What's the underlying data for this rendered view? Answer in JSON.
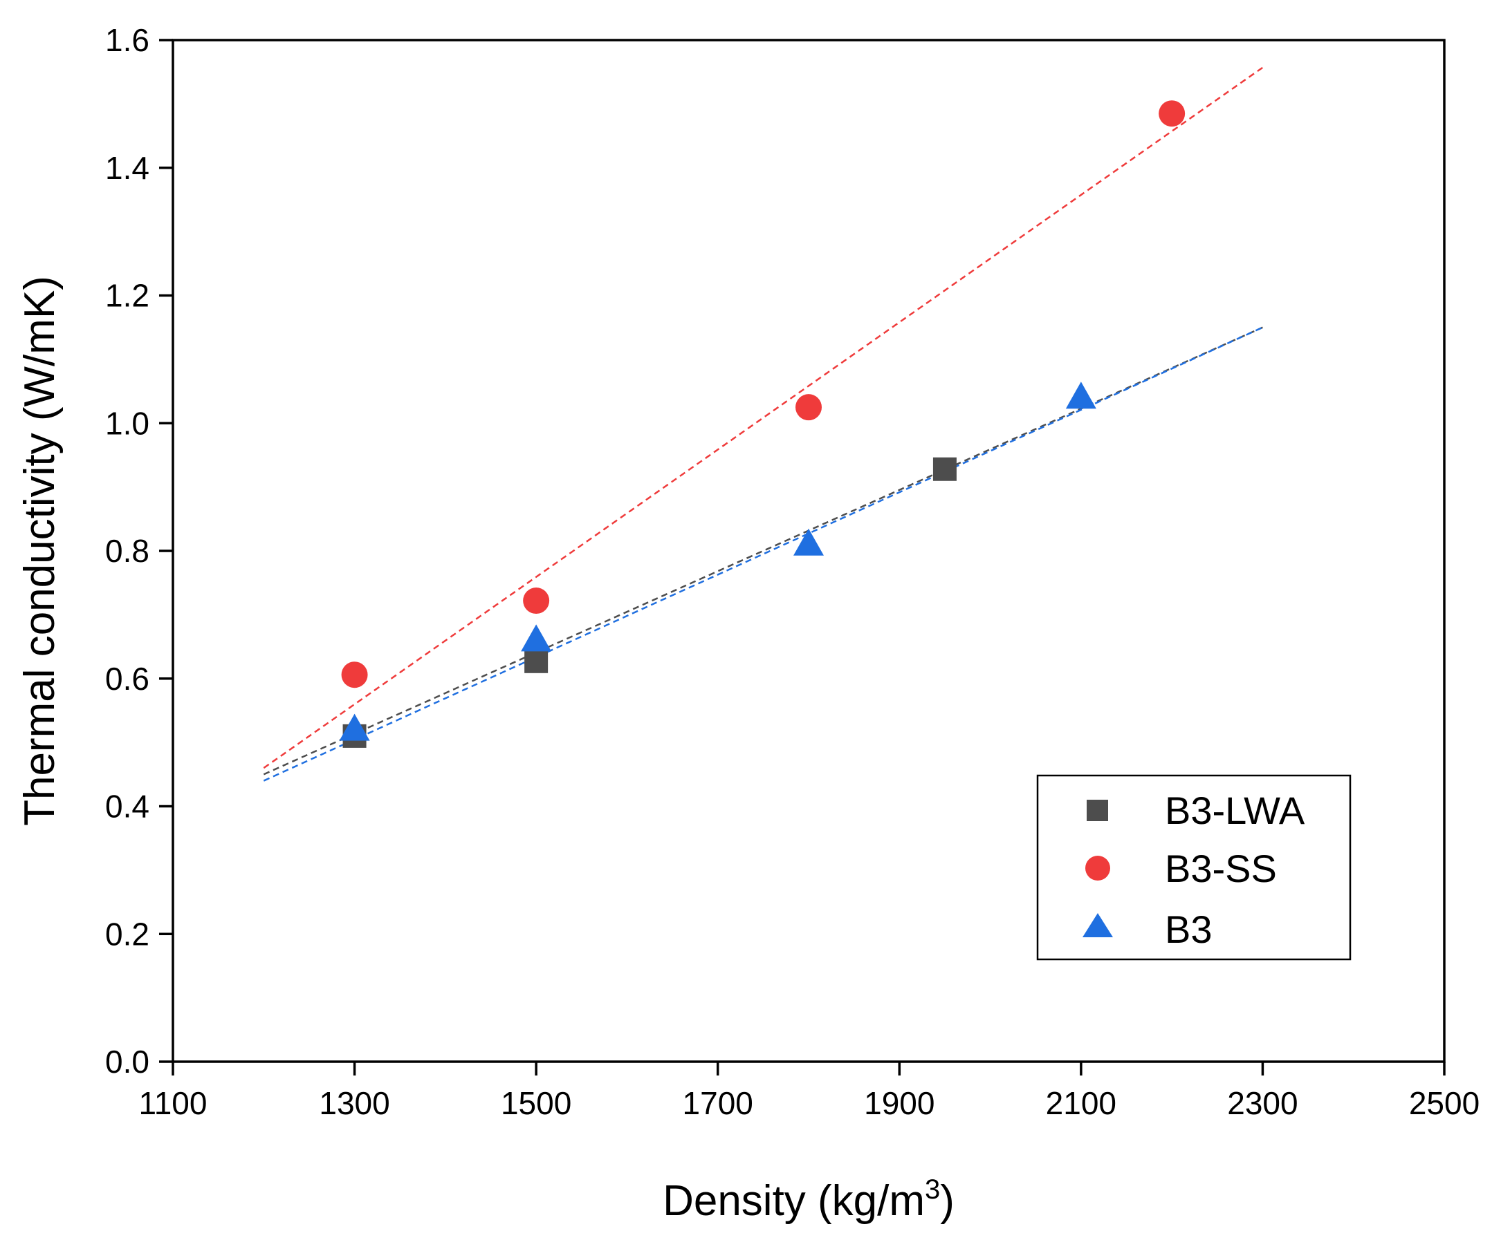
{
  "chart_data": {
    "type": "scatter",
    "title": "",
    "xlabel": "Density (kg/m",
    "xlabel_sup": "3",
    "xlabel_end": ")",
    "ylabel": "Thermal conductivity (W/mK)",
    "xlim": [
      1100,
      2500
    ],
    "ylim": [
      0.0,
      1.6
    ],
    "x_ticks": [
      "1100",
      "1300",
      "1500",
      "1700",
      "1900",
      "2100",
      "2300",
      "2500"
    ],
    "y_ticks": [
      "0.0",
      "0.2",
      "0.4",
      "0.6",
      "0.8",
      "1.0",
      "1.2",
      "1.4",
      "1.6"
    ],
    "grid": false,
    "legend_position": "bottom-right",
    "series": [
      {
        "name": "B3-LWA",
        "marker": "square",
        "color": "#4d4d4d",
        "line_color": "#4d4d4d",
        "x": [
          1300,
          1500,
          1950
        ],
        "y": [
          0.51,
          0.627,
          0.928
        ],
        "fit": {
          "x": [
            1200,
            2300
          ],
          "y": [
            0.45,
            1.15
          ]
        }
      },
      {
        "name": "B3-SS",
        "marker": "circle",
        "color": "#ef3b3b",
        "line_color": "#ef3b3b",
        "x": [
          1300,
          1500,
          1800,
          2200
        ],
        "y": [
          0.606,
          0.722,
          1.025,
          1.485
        ],
        "fit": {
          "x": [
            1200,
            2300
          ],
          "y": [
            0.46,
            1.557
          ]
        }
      },
      {
        "name": "B3",
        "marker": "triangle",
        "color": "#1f6fe0",
        "line_color": "#1f6fe0",
        "x": [
          1300,
          1500,
          1800,
          2100
        ],
        "y": [
          0.52,
          0.66,
          0.81,
          1.04
        ],
        "fit": {
          "x": [
            1200,
            2300
          ],
          "y": [
            0.44,
            1.15
          ]
        }
      }
    ]
  }
}
